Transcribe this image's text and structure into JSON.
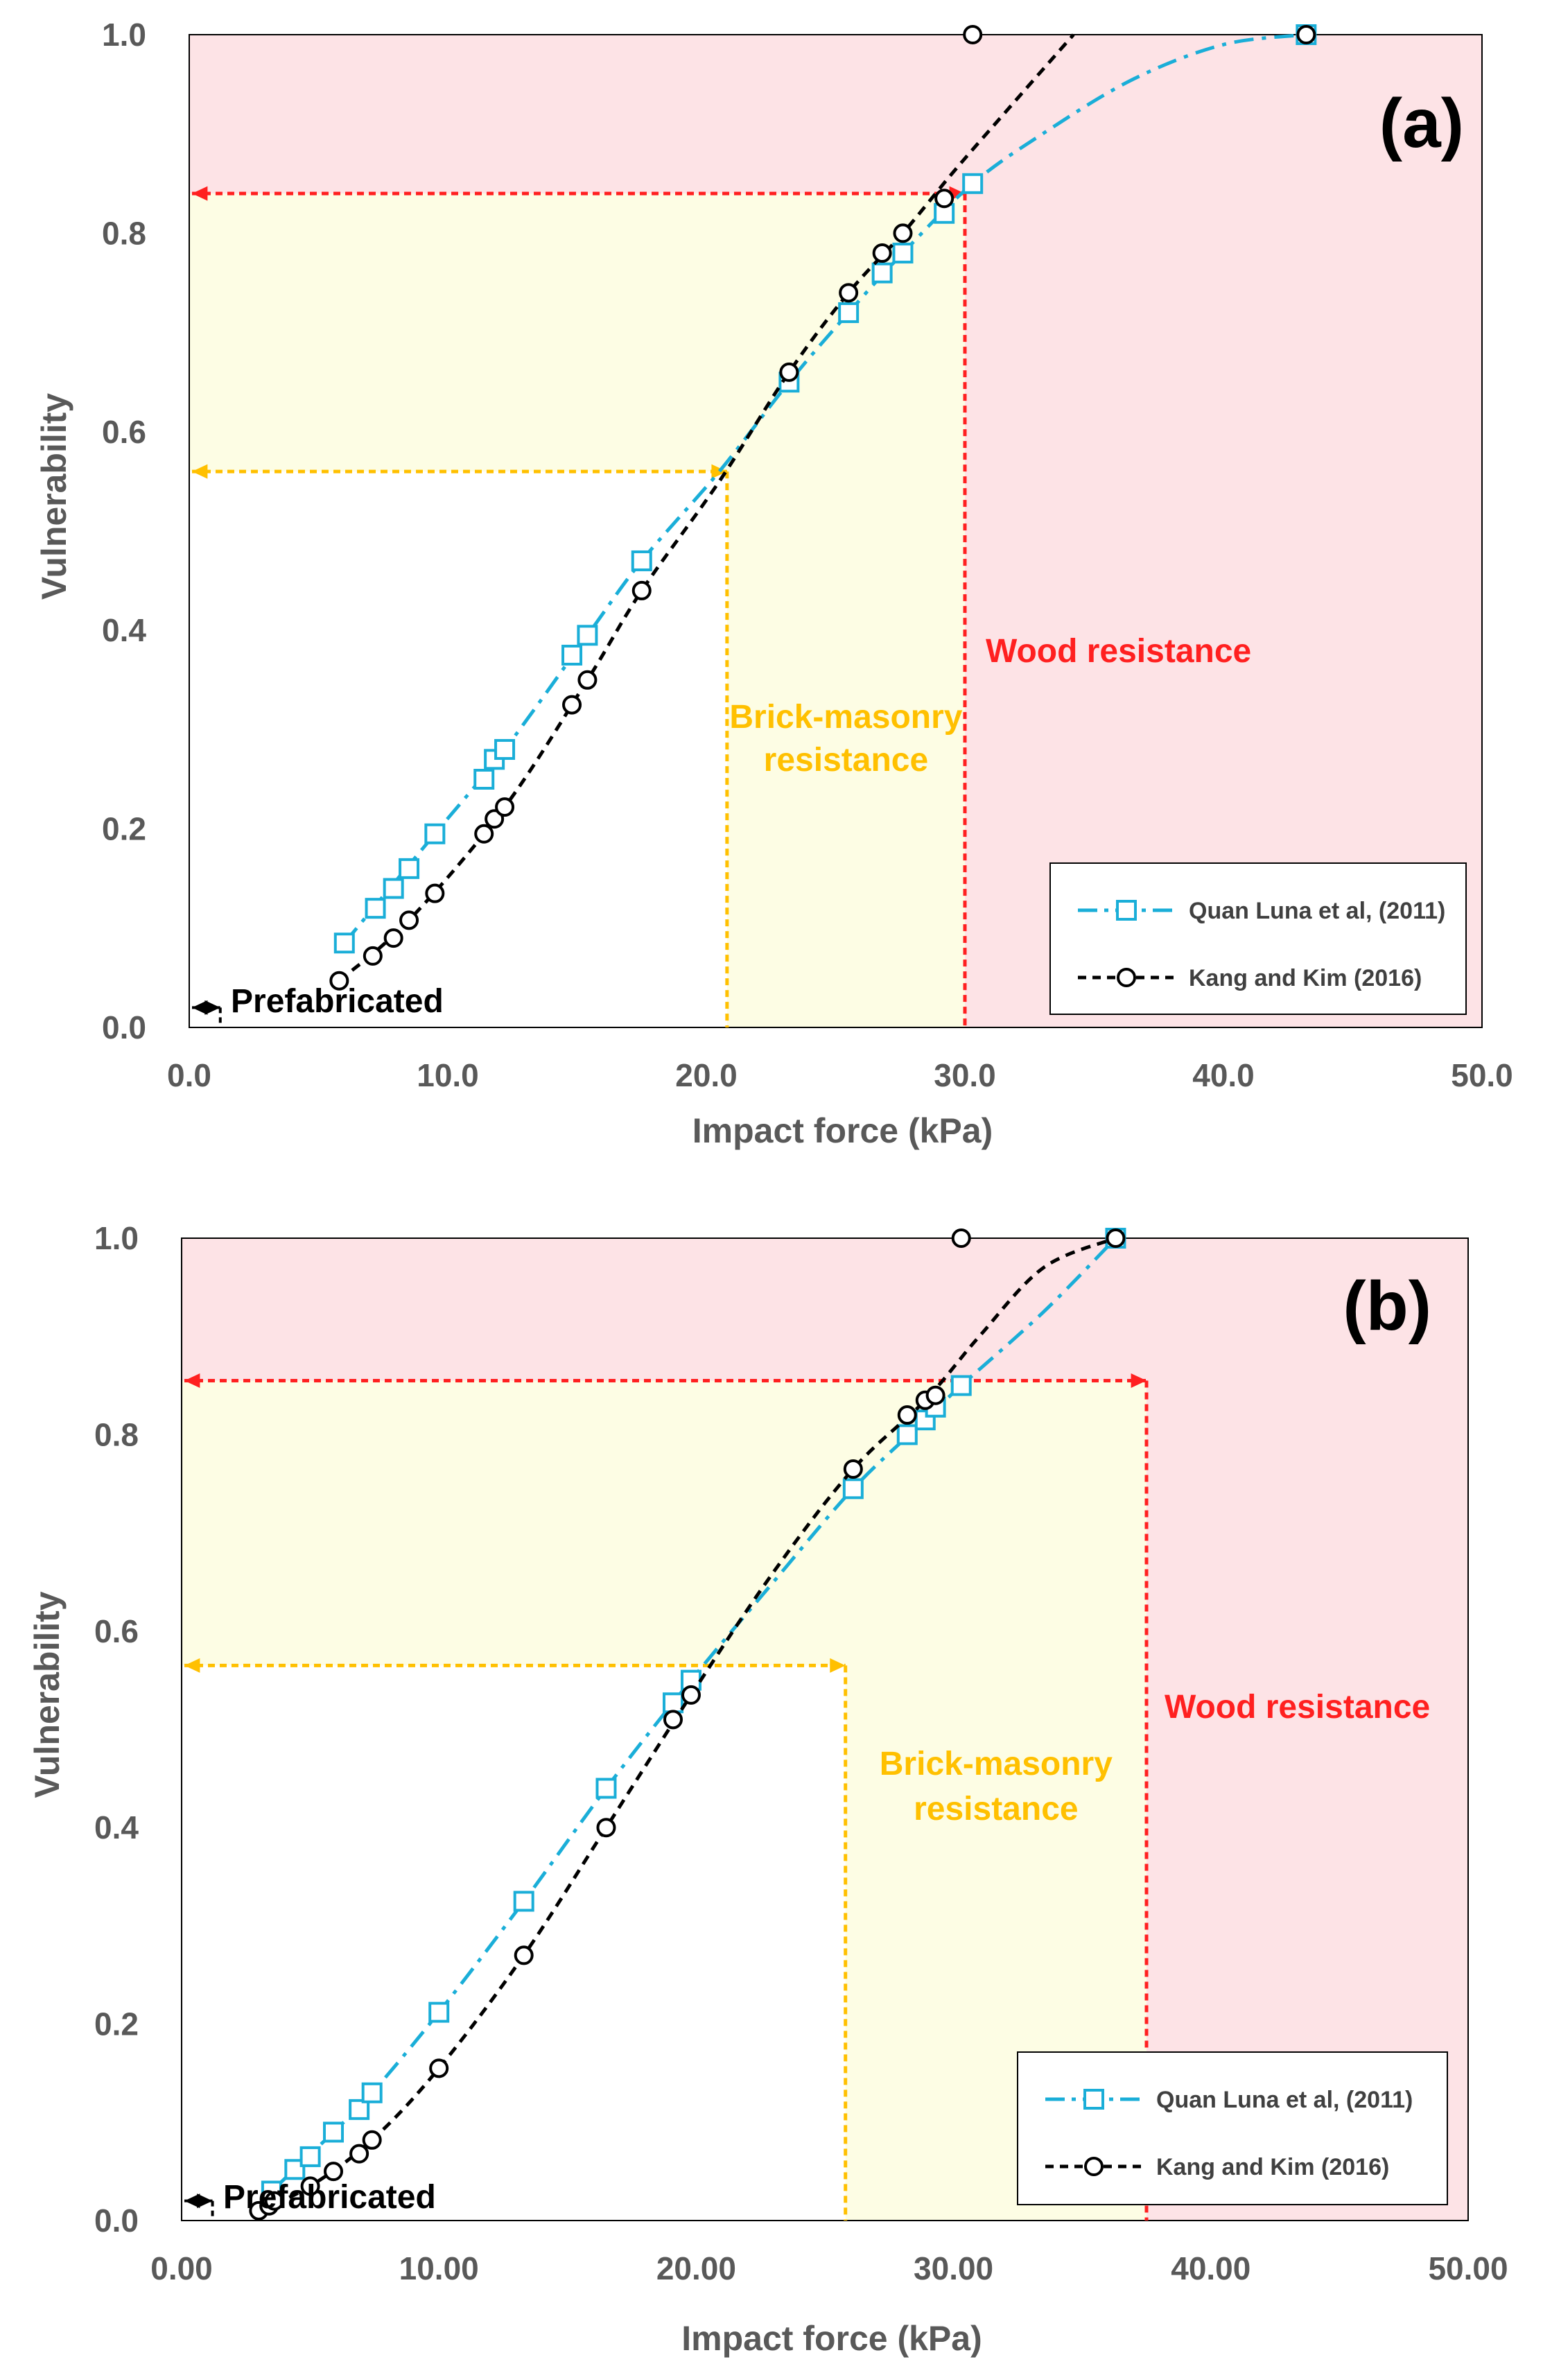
{
  "chart_data": [
    {
      "type": "line",
      "panel_label": "(a)",
      "xlabel": "Impact force  (kPa)",
      "ylabel": "Vulnerability",
      "xlim": [
        0,
        50
      ],
      "ylim": [
        0,
        1
      ],
      "xticks": [
        "0.0",
        "10.0",
        "20.0",
        "30.0",
        "40.0",
        "50.0"
      ],
      "yticks": [
        "0.0",
        "0.2",
        "0.4",
        "0.6",
        "0.8",
        "1.0"
      ],
      "legend_position": "bottom-right",
      "colors": {
        "quan": "#1aaed8",
        "kang": "#000000",
        "wood": "#ff2020",
        "brick": "#ffc000",
        "wood_zone": "#fde3e6",
        "brick_zone": "#fdfde4"
      },
      "zones": {
        "prefabricated": {
          "label": "Prefabricated",
          "force": 1.2,
          "vulnerability": 0.02
        },
        "brick": {
          "label_line1": "Brick-masonry",
          "label_line2": "resistance",
          "force": 20.8,
          "vulnerability": 0.56
        },
        "wood": {
          "label": "Wood resistance",
          "force": 30.0,
          "vulnerability": 0.84
        }
      },
      "series": [
        {
          "name": "Quan Luna et al, (2011)",
          "style": "dash-dot",
          "marker": "square",
          "points": [
            [
              6.0,
              0.085
            ],
            [
              7.2,
              0.12
            ],
            [
              7.9,
              0.14
            ],
            [
              8.5,
              0.16
            ],
            [
              9.5,
              0.195
            ],
            [
              11.4,
              0.25
            ],
            [
              11.8,
              0.27
            ],
            [
              12.2,
              0.28
            ],
            [
              14.8,
              0.375
            ],
            [
              15.4,
              0.395
            ],
            [
              17.5,
              0.47
            ],
            [
              23.2,
              0.65
            ],
            [
              25.5,
              0.72
            ],
            [
              26.8,
              0.76
            ],
            [
              27.6,
              0.78
            ],
            [
              29.2,
              0.82
            ],
            [
              30.3,
              0.85
            ],
            [
              43.2,
              1.0
            ]
          ],
          "curve": [
            [
              6.0,
              0.085
            ],
            [
              9.5,
              0.195
            ],
            [
              12.2,
              0.28
            ],
            [
              15.4,
              0.395
            ],
            [
              17.5,
              0.47
            ],
            [
              20.5,
              0.56
            ],
            [
              23.2,
              0.65
            ],
            [
              25.5,
              0.72
            ],
            [
              27.6,
              0.78
            ],
            [
              30.3,
              0.85
            ],
            [
              33.0,
              0.9
            ],
            [
              36.5,
              0.955
            ],
            [
              40.0,
              0.99
            ],
            [
              43.2,
              1.0
            ]
          ]
        },
        {
          "name": "Kang and Kim (2016)",
          "style": "dashed",
          "marker": "circle",
          "points": [
            [
              5.8,
              0.047
            ],
            [
              7.1,
              0.072
            ],
            [
              7.9,
              0.09
            ],
            [
              8.5,
              0.108
            ],
            [
              9.5,
              0.135
            ],
            [
              11.4,
              0.195
            ],
            [
              11.8,
              0.21
            ],
            [
              12.2,
              0.222
            ],
            [
              14.8,
              0.325
            ],
            [
              15.4,
              0.35
            ],
            [
              17.5,
              0.44
            ],
            [
              23.2,
              0.66
            ],
            [
              25.5,
              0.74
            ],
            [
              26.8,
              0.78
            ],
            [
              27.6,
              0.8
            ],
            [
              29.2,
              0.835
            ],
            [
              30.3,
              1.0
            ],
            [
              43.2,
              1.0
            ]
          ],
          "curve": [
            [
              5.8,
              0.047
            ],
            [
              8.5,
              0.108
            ],
            [
              12.2,
              0.222
            ],
            [
              15.4,
              0.35
            ],
            [
              17.5,
              0.44
            ],
            [
              20.5,
              0.55
            ],
            [
              23.2,
              0.66
            ],
            [
              25.5,
              0.74
            ],
            [
              27.6,
              0.8
            ],
            [
              29.5,
              0.86
            ],
            [
              31.5,
              0.92
            ],
            [
              34.2,
              1.0
            ]
          ]
        }
      ]
    },
    {
      "type": "line",
      "panel_label": "(b)",
      "xlabel": "Impact force (kPa)",
      "ylabel": "Vulnerability",
      "xlim": [
        0,
        50
      ],
      "ylim": [
        0,
        1
      ],
      "xticks": [
        "0.00",
        "10.00",
        "20.00",
        "30.00",
        "40.00",
        "50.00"
      ],
      "yticks": [
        "0.0",
        "0.2",
        "0.4",
        "0.6",
        "0.8",
        "1.0"
      ],
      "legend_position": "bottom-right",
      "colors": {
        "quan": "#1aaed8",
        "kang": "#000000",
        "wood": "#ff2020",
        "brick": "#ffc000",
        "wood_zone": "#fde3e6",
        "brick_zone": "#fdfde4"
      },
      "zones": {
        "prefabricated": {
          "label": "Prefabricated",
          "force": 1.2,
          "vulnerability": 0.02
        },
        "brick": {
          "label_line1": "Brick-masonry",
          "label_line2": "resistance",
          "force": 25.8,
          "vulnerability": 0.565
        },
        "wood": {
          "label": "Wood resistance",
          "force": 37.5,
          "vulnerability": 0.855
        }
      },
      "series": [
        {
          "name": "Quan Luna et al, (2011)",
          "style": "dash-dot",
          "marker": "square",
          "points": [
            [
              3.5,
              0.03
            ],
            [
              4.4,
              0.052
            ],
            [
              5.0,
              0.065
            ],
            [
              5.9,
              0.09
            ],
            [
              6.9,
              0.113
            ],
            [
              7.4,
              0.13
            ],
            [
              10.0,
              0.212
            ],
            [
              13.3,
              0.325
            ],
            [
              16.5,
              0.44
            ],
            [
              19.1,
              0.527
            ],
            [
              19.8,
              0.55
            ],
            [
              26.1,
              0.745
            ],
            [
              28.2,
              0.8
            ],
            [
              28.9,
              0.815
            ],
            [
              29.3,
              0.828
            ],
            [
              30.3,
              0.85
            ],
            [
              36.3,
              1.0
            ]
          ],
          "curve": [
            [
              3.5,
              0.03
            ],
            [
              5.9,
              0.09
            ],
            [
              7.4,
              0.13
            ],
            [
              10.0,
              0.212
            ],
            [
              13.3,
              0.325
            ],
            [
              16.5,
              0.44
            ],
            [
              19.8,
              0.55
            ],
            [
              23.0,
              0.65
            ],
            [
              26.1,
              0.745
            ],
            [
              28.9,
              0.815
            ],
            [
              30.3,
              0.85
            ],
            [
              33.5,
              0.925
            ],
            [
              36.3,
              1.0
            ]
          ]
        },
        {
          "name": "Kang and Kim (2016)",
          "style": "dashed",
          "marker": "circle",
          "points": [
            [
              3.0,
              0.01
            ],
            [
              3.4,
              0.015
            ],
            [
              3.6,
              0.02
            ],
            [
              5.0,
              0.035
            ],
            [
              5.9,
              0.05
            ],
            [
              6.9,
              0.068
            ],
            [
              7.4,
              0.082
            ],
            [
              10.0,
              0.155
            ],
            [
              13.3,
              0.27
            ],
            [
              16.5,
              0.4
            ],
            [
              19.1,
              0.51
            ],
            [
              19.8,
              0.535
            ],
            [
              26.1,
              0.765
            ],
            [
              28.2,
              0.82
            ],
            [
              28.9,
              0.835
            ],
            [
              29.3,
              0.84
            ],
            [
              30.3,
              1.0
            ],
            [
              36.3,
              1.0
            ]
          ],
          "curve": [
            [
              3.0,
              0.01
            ],
            [
              5.0,
              0.035
            ],
            [
              7.4,
              0.082
            ],
            [
              10.0,
              0.155
            ],
            [
              13.3,
              0.27
            ],
            [
              16.5,
              0.4
            ],
            [
              19.8,
              0.535
            ],
            [
              23.0,
              0.66
            ],
            [
              26.1,
              0.765
            ],
            [
              28.9,
              0.835
            ],
            [
              31.0,
              0.9
            ],
            [
              33.5,
              0.97
            ],
            [
              36.3,
              1.0
            ]
          ]
        }
      ]
    }
  ]
}
